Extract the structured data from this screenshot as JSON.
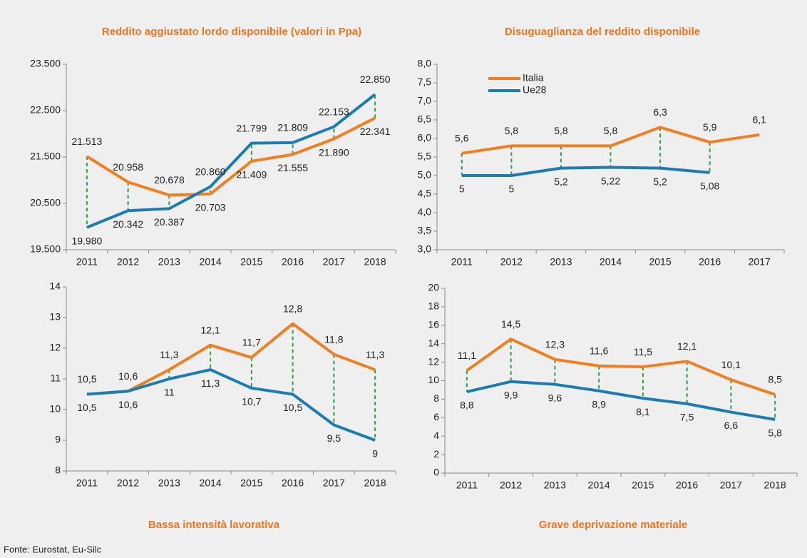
{
  "chart_data": [
    {
      "type": "line",
      "title": "Reddito aggiustato lordo disponibile (valori in Ppa)",
      "title_position": "top",
      "categories": [
        "2011",
        "2012",
        "2013",
        "2014",
        "2015",
        "2016",
        "2017",
        "2018"
      ],
      "series": [
        {
          "name": "Italia",
          "color": "#f07f22",
          "values": [
            21513,
            20958,
            20678,
            20703,
            21409,
            21555,
            21890,
            22341
          ],
          "value_labels": [
            "21.513",
            "20.958",
            "20.678",
            "20.703",
            "21.409",
            "21.555",
            "21.890",
            "22.341"
          ]
        },
        {
          "name": "Ue28",
          "color": "#1d7bb3",
          "values": [
            19980,
            20342,
            20387,
            20860,
            21799,
            21809,
            22153,
            22850
          ],
          "value_labels": [
            "19.980",
            "20.342",
            "20.387",
            "20.860",
            "21.799",
            "21.809",
            "22.153",
            "22.850"
          ]
        }
      ],
      "ylim": [
        19500,
        23500
      ],
      "yticks": [
        {
          "value": 19500,
          "label": "19.500"
        },
        {
          "value": 20500,
          "label": "20.500"
        },
        {
          "value": 21500,
          "label": "21.500"
        },
        {
          "value": 22500,
          "label": "22.500"
        },
        {
          "value": 23500,
          "label": "23.500"
        }
      ]
    },
    {
      "type": "line",
      "title": "Disuguaglianza del reddito disponibile",
      "title_position": "top",
      "legend": "upper left",
      "categories": [
        "2011",
        "2012",
        "2013",
        "2014",
        "2015",
        "2016",
        "2017"
      ],
      "series": [
        {
          "name": "Italia",
          "color": "#f07f22",
          "values": [
            5.6,
            5.8,
            5.8,
            5.8,
            6.3,
            5.9,
            6.1
          ],
          "value_labels": [
            "5,6",
            "5,8",
            "5,8",
            "5,8",
            "6,3",
            "5,9",
            "6,1"
          ]
        },
        {
          "name": "Ue28",
          "color": "#1d7bb3",
          "values": [
            5,
            5,
            5.2,
            5.22,
            5.2,
            5.08,
            null
          ],
          "value_labels": [
            "5",
            "5",
            "5,2",
            "5,22",
            "5,2",
            "5,08",
            null
          ]
        }
      ],
      "ylim": [
        3,
        8
      ],
      "yticks": [
        {
          "value": 3,
          "label": "3,0"
        },
        {
          "value": 3.5,
          "label": "3,5"
        },
        {
          "value": 4,
          "label": "4,0"
        },
        {
          "value": 4.5,
          "label": "4,5"
        },
        {
          "value": 5,
          "label": "5,0"
        },
        {
          "value": 5.5,
          "label": "5,5"
        },
        {
          "value": 6,
          "label": "6,0"
        },
        {
          "value": 6.5,
          "label": "6,5"
        },
        {
          "value": 7,
          "label": "7,0"
        },
        {
          "value": 7.5,
          "label": "7,5"
        },
        {
          "value": 8,
          "label": "8,0"
        }
      ]
    },
    {
      "type": "line",
      "title": "Bassa intensità lavorativa",
      "title_position": "bottom",
      "categories": [
        "2011",
        "2012",
        "2013",
        "2014",
        "2015",
        "2016",
        "2017",
        "2018"
      ],
      "series": [
        {
          "name": "Italia",
          "color": "#f07f22",
          "values": [
            10.5,
            10.6,
            11.3,
            12.1,
            11.7,
            12.8,
            11.8,
            11.3
          ],
          "value_labels": [
            "10,5",
            "10,6",
            "11,3",
            "12,1",
            "11,7",
            "12,8",
            "11,8",
            "11,3"
          ]
        },
        {
          "name": "Ue28",
          "color": "#1d7bb3",
          "values": [
            10.5,
            10.6,
            11,
            11.3,
            10.7,
            10.5,
            9.5,
            9
          ],
          "value_labels": [
            "10,5",
            "10,6",
            "11",
            "11,3",
            "10,7",
            "10,5",
            "9,5",
            "9"
          ]
        }
      ],
      "ylim": [
        8,
        14
      ],
      "yticks": [
        8,
        9,
        10,
        11,
        12,
        13,
        14
      ]
    },
    {
      "type": "line",
      "title": "Grave deprivazione materiale",
      "title_position": "bottom",
      "categories": [
        "2011",
        "2012",
        "2013",
        "2014",
        "2015",
        "2016",
        "2017",
        "2018"
      ],
      "series": [
        {
          "name": "Italia",
          "color": "#f07f22",
          "values": [
            11.1,
            14.5,
            12.3,
            11.6,
            11.5,
            12.1,
            10.1,
            8.5
          ],
          "value_labels": [
            "11,1",
            "14,5",
            "12,3",
            "11,6",
            "11,5",
            "12,1",
            "10,1",
            "8,5"
          ]
        },
        {
          "name": "Ue28",
          "color": "#1d7bb3",
          "values": [
            8.8,
            9.9,
            9.6,
            8.9,
            8.1,
            7.5,
            6.6,
            5.8
          ],
          "value_labels": [
            "8,8",
            "9,9",
            "9,6",
            "8,9",
            "8,1",
            "7,5",
            "6,6",
            "5,8"
          ]
        }
      ],
      "ylim": [
        0,
        20
      ],
      "yticks": [
        0,
        2,
        4,
        6,
        8,
        10,
        12,
        14,
        16,
        18,
        20
      ]
    }
  ],
  "source": "Fonte: Eurostat, Eu-Silc"
}
